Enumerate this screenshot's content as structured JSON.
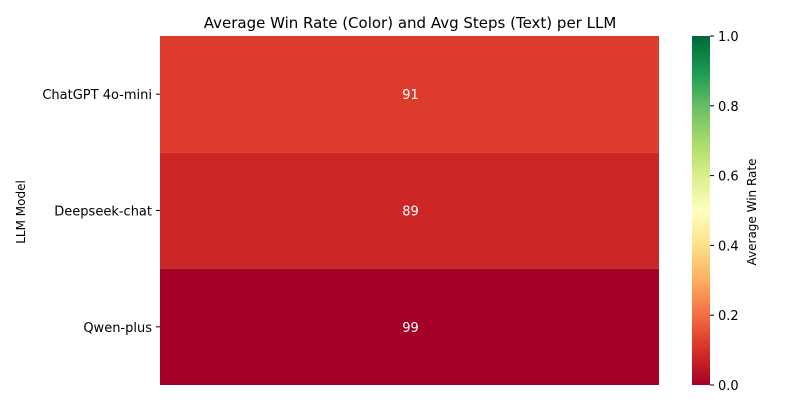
{
  "chart_data": {
    "type": "heatmap",
    "title": "Average Win Rate (Color) and Avg Steps (Text) per LLM",
    "ylabel": "LLM Model",
    "xlabel": "",
    "categories": [
      "ChatGPT 4o-mini",
      "Deepseek-chat",
      "Qwen-plus"
    ],
    "win_rate": [
      0.12,
      0.08,
      0.0
    ],
    "avg_steps": [
      91,
      89,
      99
    ],
    "colorbar": {
      "label": "Average Win Rate",
      "range": [
        0.0,
        1.0
      ],
      "ticks": [
        "0.0",
        "0.2",
        "0.4",
        "0.6",
        "0.8",
        "1.0"
      ],
      "colormap": "RdYlGn"
    },
    "cell_text_color": "#ffffff"
  }
}
